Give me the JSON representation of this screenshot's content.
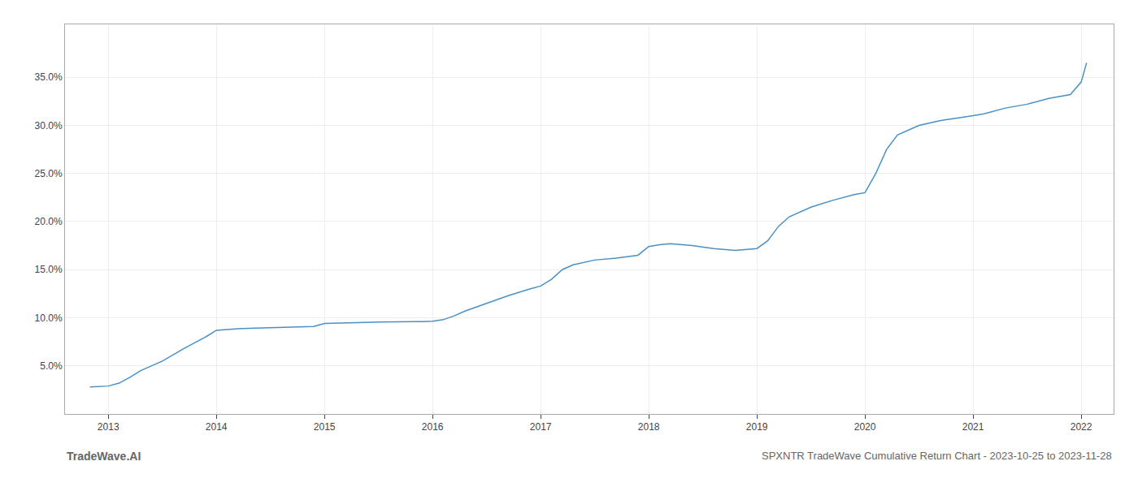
{
  "chart_data": {
    "type": "line",
    "title": "SPXNTR TradeWave Cumulative Return Chart - 2023-10-25 to 2023-11-28",
    "annotations": [
      "TradeWave.AI"
    ],
    "color": "#4a90c4",
    "grid": true,
    "x": [
      2012.83,
      2013.0,
      2013.1,
      2013.2,
      2013.3,
      2013.5,
      2013.7,
      2013.9,
      2014.0,
      2014.05,
      2014.1,
      2014.2,
      2014.3,
      2014.5,
      2014.7,
      2014.9,
      2015.0,
      2015.1,
      2015.2,
      2015.3,
      2015.5,
      2015.7,
      2015.9,
      2016.0,
      2016.1,
      2016.2,
      2016.3,
      2016.5,
      2016.7,
      2016.9,
      2017.0,
      2017.1,
      2017.2,
      2017.3,
      2017.5,
      2017.7,
      2017.9,
      2018.0,
      2018.1,
      2018.2,
      2018.4,
      2018.6,
      2018.8,
      2019.0,
      2019.1,
      2019.2,
      2019.3,
      2019.5,
      2019.7,
      2019.9,
      2020.0,
      2020.1,
      2020.2,
      2020.3,
      2020.5,
      2020.7,
      2020.9,
      2021.0,
      2021.1,
      2021.2,
      2021.3,
      2021.5,
      2021.7,
      2021.9,
      2022.0,
      2022.05
    ],
    "values": [
      2.8,
      2.9,
      3.2,
      3.8,
      4.5,
      5.5,
      6.8,
      8.0,
      8.7,
      8.75,
      8.8,
      8.85,
      8.9,
      8.95,
      9.0,
      9.1,
      9.4,
      9.45,
      9.5,
      9.5,
      9.55,
      9.55,
      9.6,
      9.65,
      9.8,
      10.2,
      10.7,
      11.5,
      12.3,
      13.0,
      13.3,
      14.0,
      15.0,
      15.5,
      16.0,
      16.2,
      16.5,
      17.4,
      17.6,
      17.7,
      17.5,
      17.2,
      17.0,
      17.2,
      18.0,
      19.5,
      20.5,
      21.5,
      22.2,
      22.8,
      23.0,
      25.0,
      27.5,
      29.0,
      30.0,
      30.5,
      30.8,
      31.0,
      31.2,
      31.5,
      31.8,
      32.2,
      32.8,
      33.2,
      34.5,
      36.5
    ],
    "xlim": [
      2012.6,
      2022.3
    ],
    "ylim": [
      0.0,
      40.5
    ],
    "xticks": [
      2013,
      2014,
      2015,
      2016,
      2017,
      2018,
      2019,
      2020,
      2021,
      2022
    ],
    "yticks": [
      {
        "value": 5.0,
        "label": "5.0%"
      },
      {
        "value": 10.0,
        "label": "10.0%"
      },
      {
        "value": 15.0,
        "label": "15.0%"
      },
      {
        "value": 20.0,
        "label": "20.0%"
      },
      {
        "value": 25.0,
        "label": "25.0%"
      },
      {
        "value": 30.0,
        "label": "30.0%"
      },
      {
        "value": 35.0,
        "label": "35.0%"
      }
    ]
  }
}
